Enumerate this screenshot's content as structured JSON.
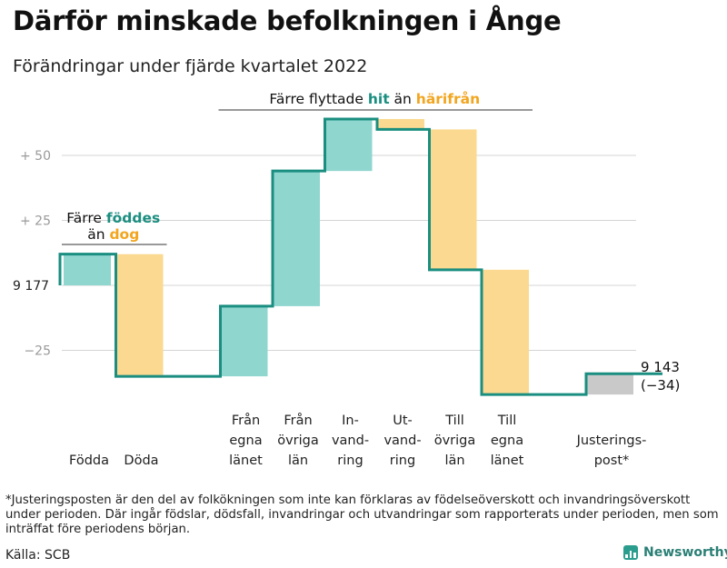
{
  "title": "Därför minskade befolkningen i Ånge",
  "subtitle": "Förändringar under fjärde kvartalet 2022",
  "colors": {
    "increase": "#8fd6cf",
    "decrease": "#fbd990",
    "adjustment": "#c9c9c9",
    "line": "#1a8e80",
    "accent_teal": "#1a8e80",
    "accent_orange": "#f2a51f",
    "grid": "#d4d4d4",
    "tick_text": "#9a9a9a"
  },
  "annotations": {
    "births": {
      "line1_prefix": "Färre ",
      "line1_highlight": "föddes",
      "line2_prefix": "än ",
      "line2_highlight": "dog"
    },
    "migration": {
      "prefix": "Färre flyttade ",
      "highlight1": "hit",
      "middle": " än ",
      "highlight2": "härifrån"
    }
  },
  "chart_data": {
    "type": "waterfall",
    "start_label": "9 177",
    "end_value_label": "9 143",
    "end_change_label": "(−34)",
    "y_ticks": [
      {
        "value": 50,
        "label": "+ 50"
      },
      {
        "value": 25,
        "label": "+ 25"
      },
      {
        "value": -25,
        "label": "−25"
      }
    ],
    "ylim": [
      -50,
      63
    ],
    "categories": [
      {
        "lines": [
          "Födda"
        ],
        "change": 12,
        "kind": "increase",
        "gap_before": 0
      },
      {
        "lines": [
          "Döda"
        ],
        "change": -47,
        "kind": "decrease",
        "gap_before": 0
      },
      {
        "lines": [
          "Från",
          "egna",
          "länet"
        ],
        "change": 27,
        "kind": "increase",
        "gap_before": 1
      },
      {
        "lines": [
          "Från",
          "övriga",
          "län"
        ],
        "change": 52,
        "kind": "increase",
        "gap_before": 0
      },
      {
        "lines": [
          "In-",
          "vand-",
          "ring"
        ],
        "change": 20,
        "kind": "increase",
        "gap_before": 0
      },
      {
        "lines": [
          "Ut-",
          "vand-",
          "ring"
        ],
        "change": -4,
        "kind": "decrease",
        "gap_before": 0
      },
      {
        "lines": [
          "Till",
          "övriga",
          "län"
        ],
        "change": -54,
        "kind": "decrease",
        "gap_before": 0
      },
      {
        "lines": [
          "Till",
          "egna",
          "länet"
        ],
        "change": -48,
        "kind": "decrease",
        "gap_before": 0
      },
      {
        "lines": [
          "Justerings-",
          "post*"
        ],
        "change": 8,
        "kind": "adjustment",
        "gap_before": 1
      }
    ]
  },
  "footnote": "*Justeringsposten är den del av folkökningen som inte kan förklaras av födelseöverskott och invandringsöverskott under perioden. Där ingår födslar, dödsfall, invandringar och utvandringar som rapporterats under perioden, men som inträffat före periodens början.",
  "source": "Källa: SCB",
  "brand": "Newsworthy"
}
